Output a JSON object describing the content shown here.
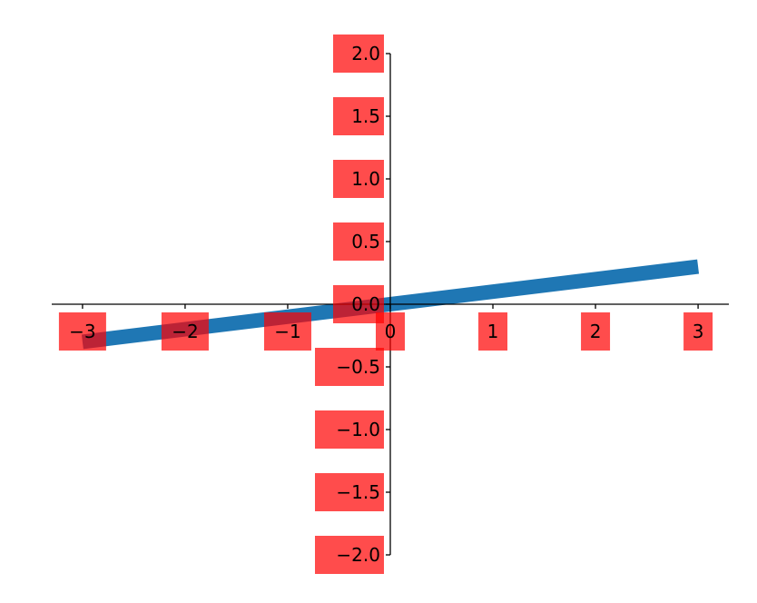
{
  "chart_data": {
    "type": "line",
    "title": "",
    "xlabel": "",
    "ylabel": "",
    "xlim": [
      -3.3,
      3.3
    ],
    "ylim": [
      -2.0,
      2.0
    ],
    "grid": false,
    "legend": "none",
    "spines": "centered at origin (left and bottom only)",
    "x_ticks": [
      {
        "value": -3,
        "label": "−3"
      },
      {
        "value": -2,
        "label": "−2"
      },
      {
        "value": -1,
        "label": "−1"
      },
      {
        "value": 0,
        "label": "0"
      },
      {
        "value": 1,
        "label": "1"
      },
      {
        "value": 2,
        "label": "2"
      },
      {
        "value": 3,
        "label": "3"
      }
    ],
    "y_ticks": [
      {
        "value": 2.0,
        "label": "2.0"
      },
      {
        "value": 1.5,
        "label": "1.5"
      },
      {
        "value": 1.0,
        "label": "1.0"
      },
      {
        "value": 0.5,
        "label": "0.5"
      },
      {
        "value": 0.0,
        "label": "0.0"
      },
      {
        "value": -0.5,
        "label": "−0.5"
      },
      {
        "value": -1.0,
        "label": "−1.0"
      },
      {
        "value": -1.5,
        "label": "−1.5"
      },
      {
        "value": -2.0,
        "label": "−2.0"
      }
    ],
    "series": [
      {
        "x": [
          -3.0,
          3.0
        ],
        "y": [
          -0.3,
          0.3
        ],
        "color": "#1f77b4"
      }
    ]
  },
  "colors": {
    "line": "#1f77b4",
    "tick_label_background": "#ff0000",
    "axis": "#000000"
  }
}
